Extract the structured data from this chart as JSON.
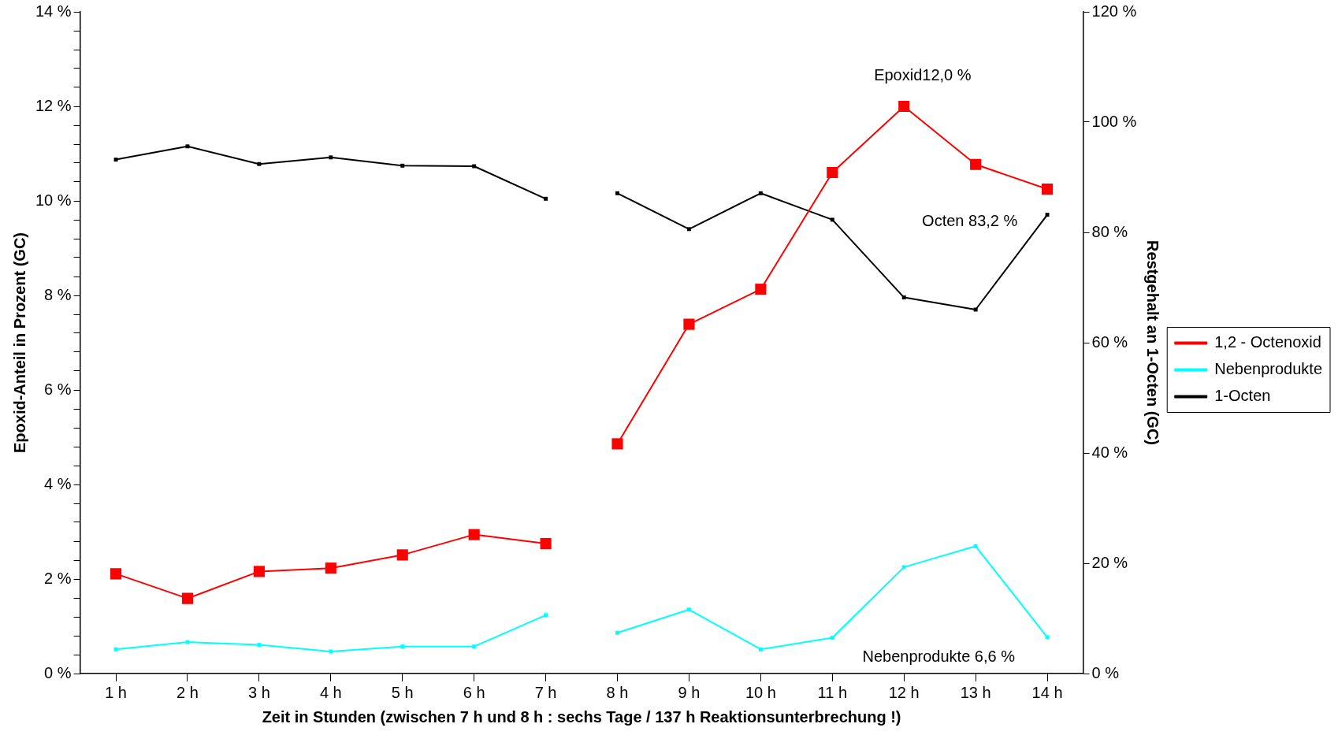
{
  "chart_data": {
    "type": "line",
    "xlabel": "Zeit in Stunden (zwischen 7 h und 8 h : sechs Tage / 137 h Reaktionsunterbrechung !)",
    "ylabel": "Epoxid-Anteil in Prozent (GC)",
    "y2label": "Restgehalt an 1-Octen (GC)",
    "categories": [
      "1 h",
      "2 h",
      "3 h",
      "4 h",
      "5 h",
      "6 h",
      "7 h",
      "8 h",
      "9 h",
      "10 h",
      "11 h",
      "12 h",
      "13 h",
      "14 h"
    ],
    "series": [
      {
        "name": "1,2 - Octenoxid",
        "color": "#ff0000",
        "values": [
          2.11,
          1.59,
          2.16,
          2.23,
          2.51,
          2.94,
          2.75,
          null,
          null,
          null,
          null,
          null,
          null,
          null
        ]
      },
      {
        "color": "#ff0000",
        "values": [
          null,
          null,
          null,
          null,
          null,
          null,
          null,
          4.86,
          7.39,
          8.13,
          10.6,
          12.0,
          10.77,
          10.25
        ]
      },
      {
        "name": "Nebenprodukte",
        "color": "#00ffff",
        "axis": "y2",
        "values": [
          4.4,
          5.7,
          5.2,
          4.0,
          4.9,
          4.9,
          10.6,
          null,
          null,
          null,
          null,
          null,
          null,
          null
        ]
      },
      {
        "color": "#00ffff",
        "axis": "y2",
        "values": [
          null,
          null,
          null,
          null,
          null,
          null,
          null,
          7.4,
          11.6,
          4.4,
          6.5,
          19.3,
          23.1,
          6.6
        ]
      },
      {
        "name": "1-Octen",
        "color": "#000000",
        "axis": "y2",
        "values": [
          93.2,
          95.6,
          92.4,
          93.6,
          92.1,
          92.0,
          86.1,
          null,
          null,
          null,
          null,
          null,
          null,
          null
        ]
      },
      {
        "color": "#000000",
        "axis": "y2",
        "values": [
          null,
          null,
          null,
          null,
          null,
          null,
          null,
          87.1,
          80.6,
          87.1,
          82.3,
          68.2,
          66.0,
          83.2
        ]
      }
    ],
    "ylim": [
      0,
      14
    ],
    "yticks": [
      {
        "value": 0,
        "label": "0 %"
      },
      {
        "value": 0.4,
        "label": null
      },
      {
        "value": 0.8,
        "label": null
      },
      {
        "value": 1.2,
        "label": null
      },
      {
        "value": 1.6,
        "label": null
      },
      {
        "value": 2,
        "label": "2 %"
      },
      {
        "value": 2.4,
        "label": null
      },
      {
        "value": 2.8,
        "label": null
      },
      {
        "value": 3.2,
        "label": null
      },
      {
        "value": 3.6,
        "label": null
      },
      {
        "value": 4,
        "label": "4 %"
      },
      {
        "value": 4.4,
        "label": null
      },
      {
        "value": 4.8,
        "label": null
      },
      {
        "value": 5.2,
        "label": null
      },
      {
        "value": 5.6,
        "label": null
      },
      {
        "value": 6,
        "label": "6 %"
      },
      {
        "value": 6.4,
        "label": null
      },
      {
        "value": 6.8,
        "label": null
      },
      {
        "value": 7.2,
        "label": null
      },
      {
        "value": 7.6,
        "label": null
      },
      {
        "value": 8,
        "label": "8 %"
      },
      {
        "value": 8.4,
        "label": null
      },
      {
        "value": 8.8,
        "label": null
      },
      {
        "value": 9.2,
        "label": null
      },
      {
        "value": 9.6,
        "label": null
      },
      {
        "value": 10,
        "label": "10 %"
      },
      {
        "value": 10.4,
        "label": null
      },
      {
        "value": 10.8,
        "label": null
      },
      {
        "value": 11.2,
        "label": null
      },
      {
        "value": 11.6,
        "label": null
      },
      {
        "value": 12,
        "label": "12 %"
      },
      {
        "value": 12.4,
        "label": null
      },
      {
        "value": 12.8,
        "label": null
      },
      {
        "value": 13.2,
        "label": null
      },
      {
        "value": 13.6,
        "label": null
      },
      {
        "value": 14,
        "label": "14 %"
      }
    ],
    "y2lim": [
      0,
      120
    ],
    "y2ticks": [
      {
        "value": 0,
        "label": "0 %"
      },
      {
        "value": 20,
        "label": "20 %"
      },
      {
        "value": 40,
        "label": "40 %"
      },
      {
        "value": 60,
        "label": "60 %"
      },
      {
        "value": 80,
        "label": "80 %"
      },
      {
        "value": 100,
        "label": "100 %"
      },
      {
        "value": 120,
        "label": "120 %"
      }
    ],
    "annotations": [
      "Epoxid12,0 %",
      "Octen 83,2 %",
      "Nebenprodukte 6,6 %"
    ],
    "grid": false,
    "legend": "right",
    "marker": "square",
    "line_style": "solid"
  }
}
